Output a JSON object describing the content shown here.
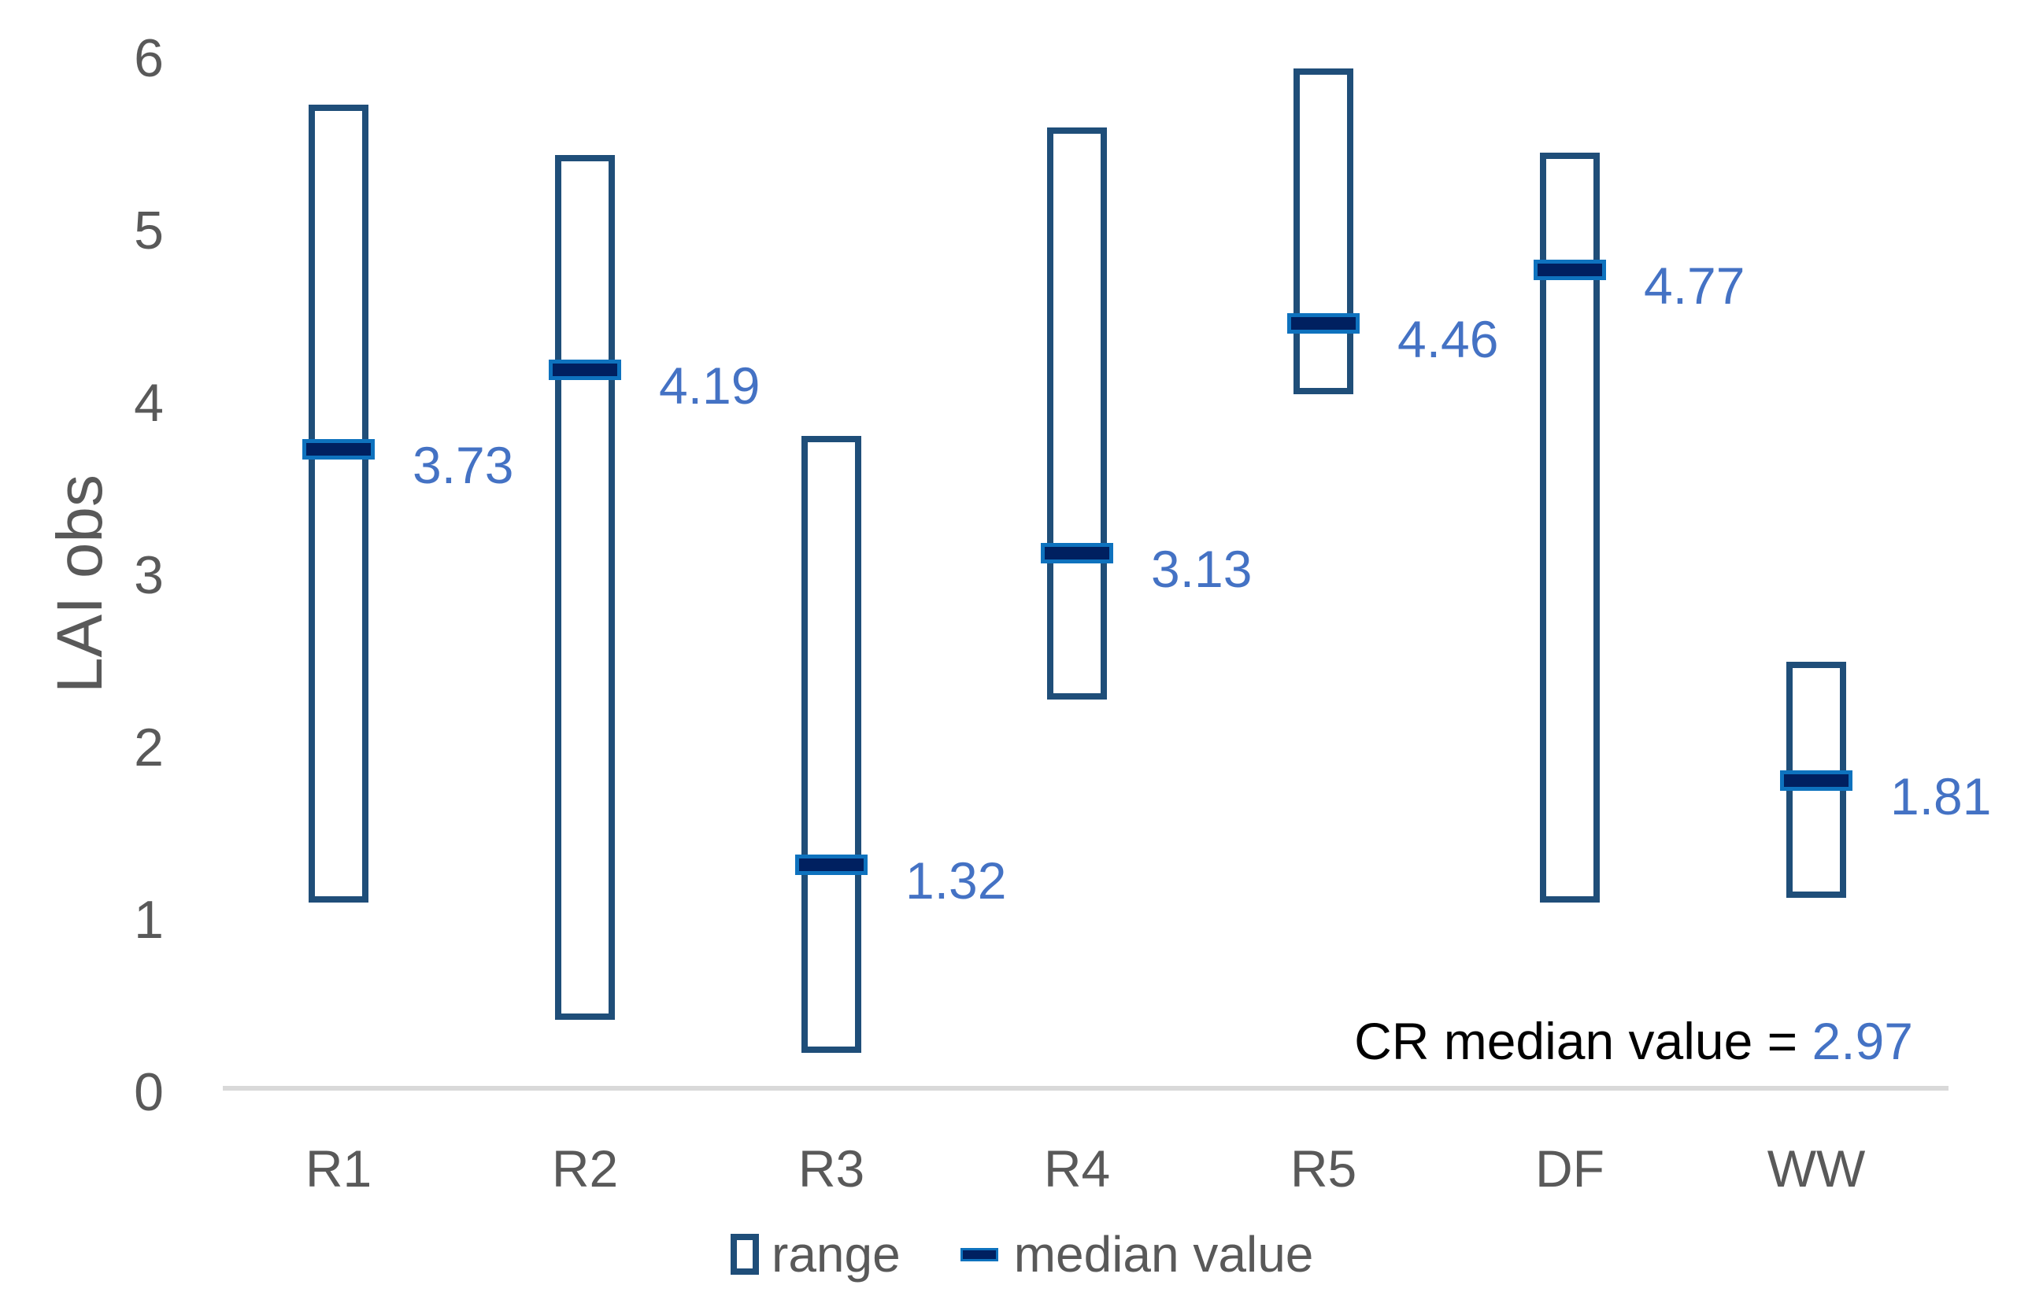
{
  "chart_data": {
    "type": "bar",
    "subtype": "floating-range-bars-with-median-ticks",
    "title": "",
    "xlabel": "",
    "ylabel": "LAI obs",
    "ylim": [
      0,
      6
    ],
    "yticks": [
      0,
      1,
      2,
      3,
      4,
      5,
      6
    ],
    "grid": false,
    "legend_position": "bottom-center",
    "categories": [
      "R1",
      "R2",
      "R3",
      "R4",
      "R5",
      "DF",
      "WW"
    ],
    "series": [
      {
        "name": "range",
        "type": "floating-bar",
        "low": [
          1.1,
          0.42,
          0.23,
          2.28,
          4.05,
          1.1,
          1.13
        ],
        "high": [
          5.73,
          5.44,
          3.81,
          5.6,
          5.94,
          5.45,
          2.5
        ]
      },
      {
        "name": "median value",
        "type": "tick",
        "values": [
          3.73,
          4.19,
          1.32,
          3.13,
          4.46,
          4.77,
          1.81
        ],
        "labels": [
          "3.73",
          "4.19",
          "1.32",
          "3.13",
          "4.46",
          "4.77",
          "1.81"
        ]
      }
    ],
    "annotation": {
      "text": "CR median value = ",
      "value": "2.97"
    }
  },
  "colors": {
    "range_outline": "#1F4E79",
    "median_fill": "#002060",
    "median_border": "#0E72BE",
    "value_label": "#4472C4",
    "axis_text": "#595959",
    "axis_line": "#D9D9D9",
    "annotation_text": "#000000"
  }
}
